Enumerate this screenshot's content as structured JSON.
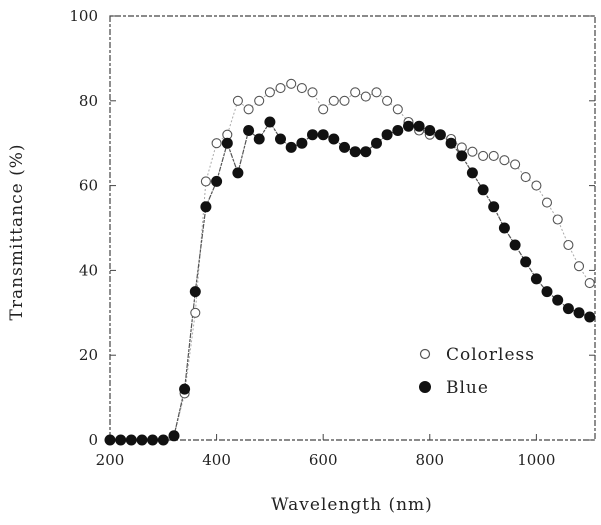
{
  "chart_data": {
    "type": "scatter",
    "xlabel": "Wavelength (nm)",
    "ylabel": "Transmittance (%)",
    "xlim": [
      200,
      1110
    ],
    "ylim": [
      0,
      100
    ],
    "xticks": [
      200,
      400,
      600,
      800,
      1000
    ],
    "yticks": [
      0,
      20,
      40,
      60,
      80,
      100
    ],
    "grid": false,
    "legend_position": "lower-right",
    "series": [
      {
        "name": "Colorless",
        "marker": "open-circle",
        "color": "#555555",
        "points": [
          [
            200,
            0
          ],
          [
            220,
            0
          ],
          [
            240,
            0
          ],
          [
            260,
            0
          ],
          [
            280,
            0
          ],
          [
            300,
            0
          ],
          [
            320,
            1
          ],
          [
            340,
            11
          ],
          [
            360,
            30
          ],
          [
            380,
            61
          ],
          [
            400,
            70
          ],
          [
            420,
            72
          ],
          [
            440,
            80
          ],
          [
            460,
            78
          ],
          [
            480,
            80
          ],
          [
            500,
            82
          ],
          [
            520,
            83
          ],
          [
            540,
            84
          ],
          [
            560,
            83
          ],
          [
            580,
            82
          ],
          [
            600,
            78
          ],
          [
            620,
            80
          ],
          [
            640,
            80
          ],
          [
            660,
            82
          ],
          [
            680,
            81
          ],
          [
            700,
            82
          ],
          [
            720,
            80
          ],
          [
            740,
            78
          ],
          [
            760,
            75
          ],
          [
            780,
            73
          ],
          [
            800,
            72
          ],
          [
            820,
            72
          ],
          [
            840,
            71
          ],
          [
            860,
            69
          ],
          [
            880,
            68
          ],
          [
            900,
            67
          ],
          [
            920,
            67
          ],
          [
            940,
            66
          ],
          [
            960,
            65
          ],
          [
            980,
            62
          ],
          [
            1000,
            60
          ],
          [
            1020,
            56
          ],
          [
            1040,
            52
          ],
          [
            1060,
            46
          ],
          [
            1080,
            41
          ],
          [
            1100,
            37
          ]
        ]
      },
      {
        "name": "Blue",
        "marker": "filled-circle",
        "color": "#111111",
        "points": [
          [
            200,
            0
          ],
          [
            220,
            0
          ],
          [
            240,
            0
          ],
          [
            260,
            0
          ],
          [
            280,
            0
          ],
          [
            300,
            0
          ],
          [
            320,
            1
          ],
          [
            340,
            12
          ],
          [
            360,
            35
          ],
          [
            380,
            55
          ],
          [
            400,
            61
          ],
          [
            420,
            70
          ],
          [
            440,
            63
          ],
          [
            460,
            73
          ],
          [
            480,
            71
          ],
          [
            500,
            75
          ],
          [
            520,
            71
          ],
          [
            540,
            69
          ],
          [
            560,
            70
          ],
          [
            580,
            72
          ],
          [
            600,
            72
          ],
          [
            620,
            71
          ],
          [
            640,
            69
          ],
          [
            660,
            68
          ],
          [
            680,
            68
          ],
          [
            700,
            70
          ],
          [
            720,
            72
          ],
          [
            740,
            73
          ],
          [
            760,
            74
          ],
          [
            780,
            74
          ],
          [
            800,
            73
          ],
          [
            820,
            72
          ],
          [
            840,
            70
          ],
          [
            860,
            67
          ],
          [
            880,
            63
          ],
          [
            900,
            59
          ],
          [
            920,
            55
          ],
          [
            940,
            50
          ],
          [
            960,
            46
          ],
          [
            980,
            42
          ],
          [
            1000,
            38
          ],
          [
            1020,
            35
          ],
          [
            1040,
            33
          ],
          [
            1060,
            31
          ],
          [
            1080,
            30
          ],
          [
            1100,
            29
          ]
        ]
      }
    ]
  }
}
